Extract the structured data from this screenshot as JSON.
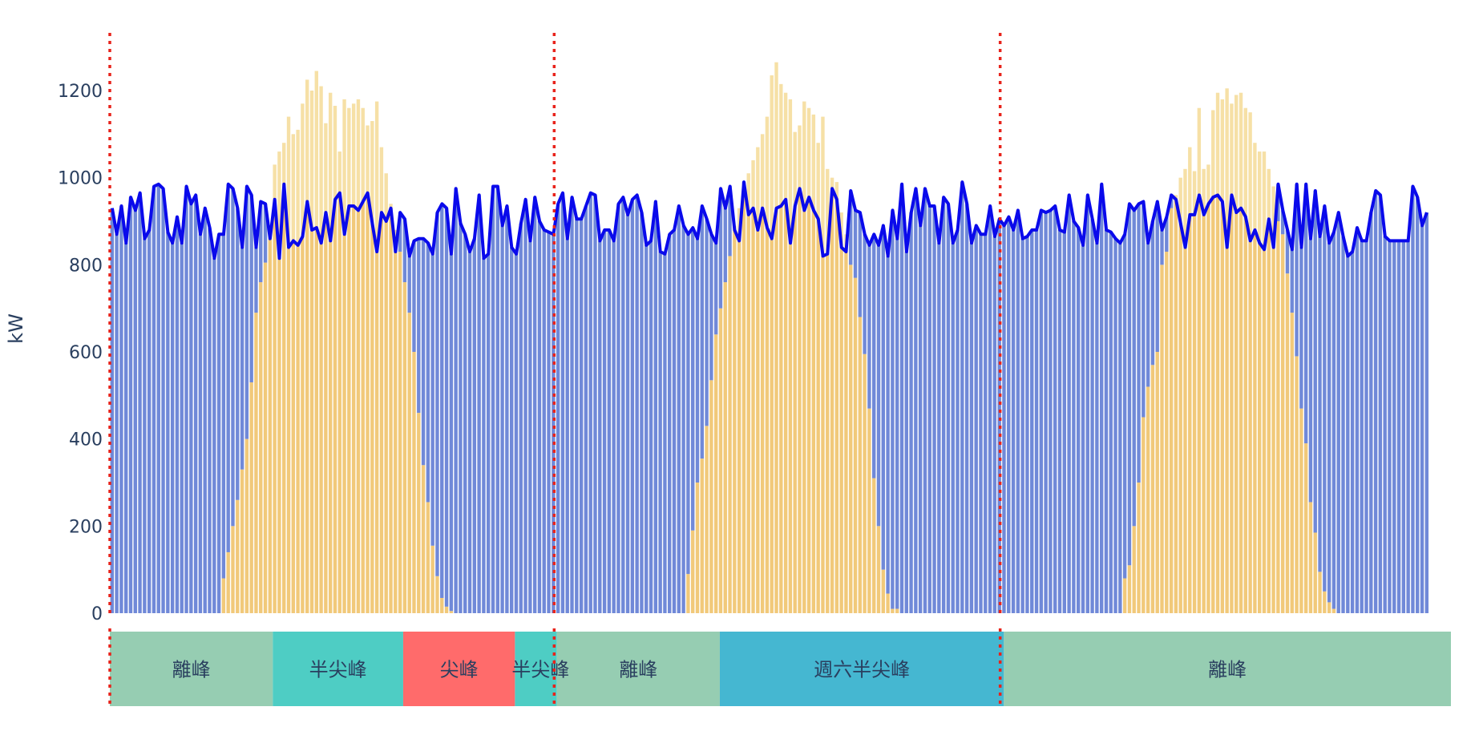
{
  "chart_data": {
    "type": "bar",
    "title": "",
    "xlabel": "",
    "ylabel": "kW",
    "ylim": [
      0,
      1330
    ],
    "yticks": [
      0,
      200,
      400,
      600,
      800,
      1000,
      1200
    ],
    "grid": false,
    "legend": "none",
    "interval_minutes": 15,
    "n_intervals": 288,
    "days": 3,
    "day_boundaries_index": [
      0,
      96,
      192
    ],
    "series": [
      {
        "name": "grid (blue bars)",
        "color": "#7089d8",
        "role": "stacked bar = load - solar_used"
      },
      {
        "name": "solar self-consumed (yellow bars)",
        "color": "#f1c97a",
        "role": "stacked bar = min(solar, load)"
      },
      {
        "name": "solar excess (light yellow bars)",
        "color": "#f6e0a6",
        "role": "stacked bar = max(solar - load, 0)"
      },
      {
        "name": "load (blue line)",
        "color": "#0a0aeb",
        "role": "line"
      }
    ],
    "load": [
      930,
      870,
      935,
      850,
      955,
      925,
      965,
      860,
      880,
      980,
      985,
      975,
      875,
      850,
      910,
      850,
      980,
      940,
      960,
      870,
      930,
      885,
      815,
      870,
      870,
      985,
      975,
      930,
      840,
      980,
      960,
      840,
      945,
      940,
      860,
      950,
      815,
      985,
      840,
      855,
      845,
      865,
      945,
      880,
      885,
      850,
      920,
      855,
      950,
      965,
      870,
      935,
      935,
      925,
      945,
      965,
      895,
      830,
      920,
      900,
      930,
      830,
      920,
      905,
      820,
      855,
      860,
      860,
      850,
      825,
      920,
      940,
      930,
      825,
      975,
      895,
      870,
      830,
      860,
      960,
      815,
      825,
      980,
      980,
      890,
      935,
      840,
      825,
      895,
      950,
      855,
      955,
      900,
      880,
      875,
      870,
      940,
      965,
      860,
      955,
      905,
      905,
      935,
      965,
      960,
      855,
      880,
      880,
      855,
      940,
      955,
      915,
      950,
      960,
      920,
      845,
      855,
      945,
      830,
      825,
      870,
      880,
      935,
      890,
      870,
      885,
      860,
      935,
      905,
      870,
      850,
      975,
      930,
      980,
      880,
      855,
      990,
      915,
      930,
      880,
      930,
      885,
      860,
      930,
      935,
      950,
      850,
      935,
      975,
      925,
      955,
      925,
      905,
      820,
      825,
      975,
      950,
      840,
      830,
      970,
      925,
      920,
      870,
      845,
      870,
      845,
      890,
      820,
      925,
      860,
      985,
      830,
      920,
      975,
      890,
      975,
      935,
      935,
      850,
      955,
      940,
      850,
      880,
      990,
      940,
      850,
      890,
      870,
      870,
      935,
      865,
      905,
      890,
      910,
      880,
      925,
      860,
      865,
      880,
      880,
      925,
      920,
      925,
      935,
      880,
      875,
      960,
      900,
      885,
      845,
      960,
      905,
      850,
      985,
      880,
      875,
      860,
      850,
      870,
      940,
      925,
      940,
      945,
      850,
      900,
      945,
      880,
      910,
      960,
      950,
      895,
      840,
      915,
      915,
      960,
      915,
      940,
      955,
      960,
      945,
      840,
      960,
      920,
      930,
      910,
      855,
      880,
      850,
      835,
      905,
      840,
      985,
      925,
      880,
      835,
      985,
      840,
      985,
      860,
      970,
      865,
      935,
      850,
      875,
      920,
      865,
      820,
      830,
      885,
      855,
      855,
      920,
      970,
      960,
      865,
      855,
      855,
      855,
      855,
      855,
      980,
      955,
      890,
      920
    ],
    "solar": [
      0,
      0,
      0,
      0,
      0,
      0,
      0,
      0,
      0,
      0,
      0,
      0,
      0,
      0,
      0,
      0,
      0,
      0,
      0,
      0,
      0,
      0,
      0,
      0,
      80,
      140,
      200,
      260,
      330,
      400,
      530,
      690,
      760,
      805,
      860,
      1030,
      1060,
      1080,
      1140,
      1100,
      1110,
      1170,
      1225,
      1200,
      1245,
      1210,
      1125,
      1195,
      1165,
      1060,
      1180,
      1160,
      1170,
      1180,
      1160,
      1120,
      1130,
      1175,
      1070,
      1010,
      940,
      880,
      830,
      760,
      690,
      600,
      460,
      340,
      255,
      155,
      85,
      35,
      15,
      5,
      0,
      0,
      0,
      0,
      0,
      0,
      0,
      0,
      0,
      0,
      0,
      0,
      0,
      0,
      0,
      0,
      0,
      0,
      0,
      0,
      0,
      0,
      0,
      0,
      0,
      0,
      0,
      0,
      0,
      0,
      0,
      0,
      0,
      0,
      0,
      0,
      0,
      0,
      0,
      0,
      0,
      0,
      0,
      0,
      0,
      0,
      0,
      0,
      0,
      0,
      90,
      190,
      300,
      355,
      430,
      535,
      640,
      700,
      760,
      820,
      890,
      930,
      985,
      1010,
      1040,
      1070,
      1100,
      1140,
      1235,
      1265,
      1215,
      1195,
      1180,
      1105,
      1120,
      1175,
      1160,
      1145,
      1080,
      1140,
      1020,
      1000,
      990,
      920,
      870,
      800,
      770,
      680,
      595,
      470,
      310,
      200,
      100,
      45,
      10,
      10,
      0,
      0,
      0,
      0,
      0,
      0,
      0,
      0,
      0,
      0,
      0,
      0,
      0,
      0,
      0,
      0,
      0,
      0,
      0,
      0,
      0,
      0,
      0,
      0,
      0,
      0,
      0,
      0,
      0,
      0,
      0,
      0,
      0,
      0,
      0,
      0,
      0,
      0,
      0,
      0,
      0,
      0,
      0,
      0,
      0,
      0,
      0,
      0,
      80,
      110,
      200,
      300,
      450,
      520,
      570,
      600,
      800,
      830,
      930,
      960,
      1000,
      1020,
      1070,
      1015,
      1160,
      1020,
      1030,
      1155,
      1195,
      1180,
      1205,
      1170,
      1190,
      1195,
      1160,
      1150,
      1080,
      1060,
      1060,
      1020,
      980,
      900,
      870,
      780,
      690,
      590,
      470,
      390,
      255,
      185,
      95,
      50,
      25,
      10,
      0,
      0,
      0,
      0,
      0,
      0,
      0,
      0,
      0,
      0,
      0,
      0,
      0,
      0,
      0,
      0,
      0,
      0,
      0,
      0,
      0,
      0,
      0,
      0
    ]
  },
  "axis": {
    "y_title": "kW",
    "y_ticks": [
      "0",
      "200",
      "400",
      "600",
      "800",
      "1000",
      "1200"
    ]
  },
  "tou_bar": {
    "segments": [
      {
        "label": "離峰",
        "color": "#96cdb2",
        "start": 0,
        "end": 35
      },
      {
        "label": "半尖峰",
        "color": "#4ecdc4",
        "start": 35,
        "end": 63
      },
      {
        "label": "尖峰",
        "color": "#ff6b6b",
        "start": 63,
        "end": 87
      },
      {
        "label": "半尖峰",
        "color": "#4ecdc4",
        "start": 87,
        "end": 96
      },
      {
        "label": "離峰",
        "color": "#96cdb2",
        "start": 96,
        "end": 131
      },
      {
        "label": "週六半尖峰",
        "color": "#45b7d1",
        "start": 131,
        "end": 192
      },
      {
        "label": "離峰",
        "color": "#96cdb2",
        "start": 192,
        "end": 288
      }
    ]
  },
  "day_dividers": {
    "color": "#e8231b",
    "style": "dotted",
    "indices": [
      0,
      96,
      192
    ]
  },
  "colors": {
    "grid_bar": "#7089d8",
    "solar_bar": "#f1c97a",
    "solar_excess_bar": "#f6e0a6",
    "load_line": "#0a0aeb",
    "text": "#2a3f5f"
  }
}
